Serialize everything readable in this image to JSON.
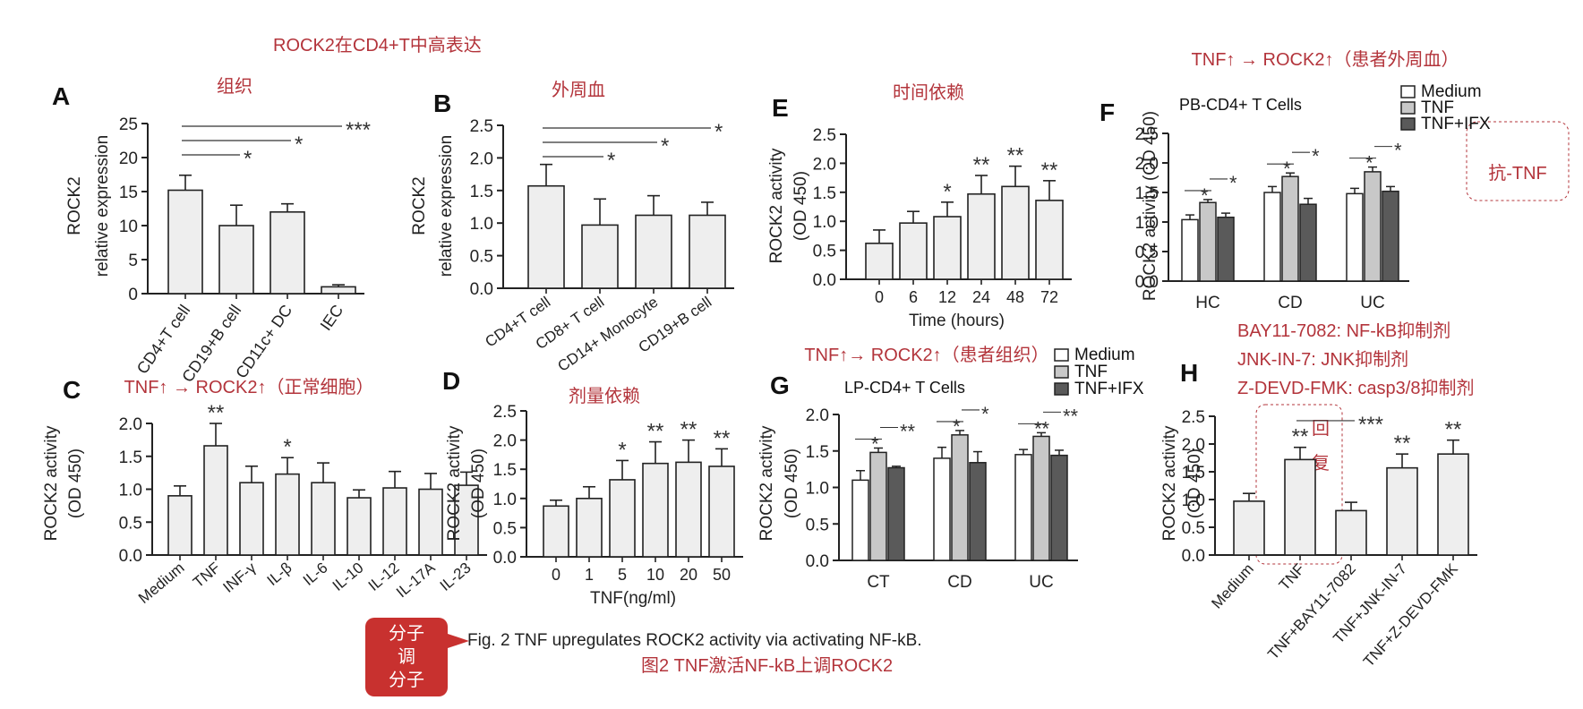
{
  "figure": {
    "header": "ROCK2在CD4+T中高表达",
    "caption_en": "Fig. 2 TNF upregulates ROCK2 activity via activating NF-kB.",
    "caption_zh": "图2 TNF激活NF-kB上调ROCK2",
    "badge_lines": [
      "分子",
      "调",
      "分子"
    ],
    "inhibitor_notes": [
      "BAY11-7082: NF-kB抑制剂",
      "JNK-IN-7: JNK抑制剂",
      "Z-DEVD-FMK: casp3/8抑制剂"
    ],
    "anti_tnf_note": "抗-TNF",
    "recovery_note": [
      "回",
      "复"
    ],
    "colors": {
      "accent": "#b3343b",
      "bar_fill": "#eeeeee",
      "bar_stroke": "#222222",
      "tnf_fill": "#c8c8c8",
      "ifx_fill": "#5a5a5a",
      "medium_fill": "#ffffff"
    }
  },
  "chart_data": [
    {
      "id": "A",
      "type": "bar",
      "heading": "组织",
      "ylabel_lines": [
        "ROCK2",
        "relative expression"
      ],
      "ylim": [
        0,
        25
      ],
      "yticks": [
        "0",
        "5",
        "10",
        "15",
        "20",
        "25"
      ],
      "categories": [
        "CD4+T cell",
        "CD19+B cell",
        "CD11c+ DC",
        "IEC"
      ],
      "values": [
        15.2,
        10.0,
        12.0,
        1.0
      ],
      "errors": [
        2.2,
        3.0,
        1.2,
        0.3
      ],
      "bar_stars": [
        "",
        "",
        "",
        ""
      ],
      "brackets": [
        {
          "from": 0,
          "to": 1,
          "label": "*"
        },
        {
          "from": 0,
          "to": 2,
          "label": "*"
        },
        {
          "from": 0,
          "to": 3,
          "label": "***"
        }
      ]
    },
    {
      "id": "B",
      "type": "bar",
      "heading": "外周血",
      "ylabel_lines": [
        "ROCK2",
        "relative expression"
      ],
      "ylim": [
        0,
        2.5
      ],
      "yticks": [
        "0.0",
        "0.5",
        "1.0",
        "1.5",
        "2.0",
        "2.5"
      ],
      "categories": [
        "CD4+T cell",
        "CD8+ T cell",
        "CD14+ Monocyte",
        "CD19+B cell"
      ],
      "values": [
        1.57,
        0.97,
        1.12,
        1.12
      ],
      "errors": [
        0.33,
        0.4,
        0.3,
        0.2
      ],
      "bar_stars": [
        "",
        "",
        "",
        ""
      ],
      "brackets": [
        {
          "from": 0,
          "to": 1,
          "label": "*"
        },
        {
          "from": 0,
          "to": 2,
          "label": "*"
        },
        {
          "from": 0,
          "to": 3,
          "label": "*"
        }
      ]
    },
    {
      "id": "E",
      "type": "bar",
      "heading": "时间依赖",
      "ylabel_lines": [
        "ROCK2 activity",
        "(OD 450)"
      ],
      "xlabel": "Time (hours)",
      "ylim": [
        0,
        2.5
      ],
      "yticks": [
        "0.0",
        "0.5",
        "1.0",
        "1.5",
        "2.0",
        "2.5"
      ],
      "categories": [
        "0",
        "6",
        "12",
        "24",
        "48",
        "72"
      ],
      "values": [
        0.62,
        0.97,
        1.08,
        1.47,
        1.6,
        1.36
      ],
      "errors": [
        0.23,
        0.2,
        0.25,
        0.32,
        0.35,
        0.34
      ],
      "bar_stars": [
        "",
        "",
        "*",
        "**",
        "**",
        "**"
      ],
      "brackets": []
    },
    {
      "id": "C",
      "type": "bar",
      "heading": "TNF↑ → ROCK2↑（正常细胞）",
      "ylabel_lines": [
        "ROCK2 activity",
        "(OD 450)"
      ],
      "ylim": [
        0,
        2.0
      ],
      "yticks": [
        "0.0",
        "0.5",
        "1.0",
        "1.5",
        "2.0"
      ],
      "categories": [
        "Medium",
        "TNF",
        "INF-γ",
        "IL-β",
        "IL-6",
        "IL-10",
        "IL-12",
        "IL-17A",
        "IL-23"
      ],
      "values": [
        0.9,
        1.66,
        1.1,
        1.23,
        1.1,
        0.87,
        1.02,
        1.0,
        1.06
      ],
      "errors": [
        0.15,
        0.34,
        0.25,
        0.25,
        0.3,
        0.12,
        0.25,
        0.24,
        0.2
      ],
      "bar_stars": [
        "",
        "**",
        "",
        "*",
        "",
        "",
        "",
        "",
        ""
      ],
      "brackets": []
    },
    {
      "id": "D",
      "type": "bar",
      "heading": "剂量依赖",
      "ylabel_lines": [
        "ROCK2 activity",
        "(OD 450)"
      ],
      "xlabel": "TNF(ng/ml)",
      "ylim": [
        0,
        2.5
      ],
      "yticks": [
        "0.0",
        "0.5",
        "1.0",
        "1.5",
        "2.0",
        "2.5"
      ],
      "categories": [
        "0",
        "1",
        "5",
        "10",
        "20",
        "50"
      ],
      "values": [
        0.87,
        1.0,
        1.32,
        1.6,
        1.62,
        1.55
      ],
      "errors": [
        0.1,
        0.2,
        0.33,
        0.37,
        0.38,
        0.3
      ],
      "bar_stars": [
        "",
        "",
        "*",
        "**",
        "**",
        "**"
      ],
      "brackets": []
    },
    {
      "id": "F",
      "type": "grouped-bar",
      "heading": "TNF↑ → ROCK2↑（患者外周血）",
      "subtitle": "PB-CD4+ T Cells",
      "ylabel_lines": [
        "ROCK2 activity (OD 450)"
      ],
      "ylim": [
        0,
        2.5
      ],
      "yticks": [
        "0.0",
        "0.5",
        "1.0",
        "1.5",
        "2.0",
        "2.5"
      ],
      "categories": [
        "HC",
        "CD",
        "UC"
      ],
      "series": [
        {
          "name": "Medium",
          "values": [
            1.04,
            1.5,
            1.48
          ],
          "errors": [
            0.08,
            0.1,
            0.09
          ]
        },
        {
          "name": "TNF",
          "values": [
            1.33,
            1.77,
            1.85
          ],
          "errors": [
            0.05,
            0.06,
            0.08
          ]
        },
        {
          "name": "TNF+IFX",
          "values": [
            1.08,
            1.3,
            1.52
          ],
          "errors": [
            0.07,
            0.1,
            0.08
          ]
        }
      ],
      "group_stars": [
        "*",
        "*",
        "*"
      ]
    },
    {
      "id": "G",
      "type": "grouped-bar",
      "heading": "TNF↑→ ROCK2↑（患者组织）",
      "subtitle": "LP-CD4+ T Cells",
      "ylabel_lines": [
        "ROCK2 activity",
        "(OD 450)"
      ],
      "ylim": [
        0,
        2.0
      ],
      "yticks": [
        "0.0",
        "0.5",
        "1.0",
        "1.5",
        "2.0"
      ],
      "categories": [
        "CT",
        "CD",
        "UC"
      ],
      "series": [
        {
          "name": "Medium",
          "values": [
            1.1,
            1.4,
            1.45
          ],
          "errors": [
            0.13,
            0.15,
            0.07
          ]
        },
        {
          "name": "TNF",
          "values": [
            1.48,
            1.72,
            1.7
          ],
          "errors": [
            0.06,
            0.06,
            0.05
          ]
        },
        {
          "name": "TNF+IFX",
          "values": [
            1.27,
            1.34,
            1.44
          ],
          "errors": [
            0.02,
            0.15,
            0.07
          ]
        }
      ],
      "group_stars": [
        "*",
        "*",
        "**"
      ],
      "group_stars_right": [
        "**",
        "*",
        "**"
      ]
    },
    {
      "id": "H",
      "type": "bar",
      "heading": "",
      "ylabel_lines": [
        "ROCK2 activity",
        "(OD 450)"
      ],
      "ylim": [
        0,
        2.5
      ],
      "yticks": [
        "0.0",
        "0.5",
        "1.0",
        "1.5",
        "2.0",
        "2.5"
      ],
      "categories": [
        "Medium",
        "TNF",
        "TNF+BAY11-7082",
        "TNF+JNK-IN-7",
        "TNF+Z-DEVD-FMK"
      ],
      "values": [
        0.97,
        1.72,
        0.8,
        1.57,
        1.82
      ],
      "errors": [
        0.14,
        0.22,
        0.15,
        0.25,
        0.25
      ],
      "bar_stars": [
        "",
        "**",
        "",
        "**",
        "**"
      ],
      "brackets": [
        {
          "from": 1,
          "to": 2,
          "label": "***"
        }
      ]
    }
  ]
}
